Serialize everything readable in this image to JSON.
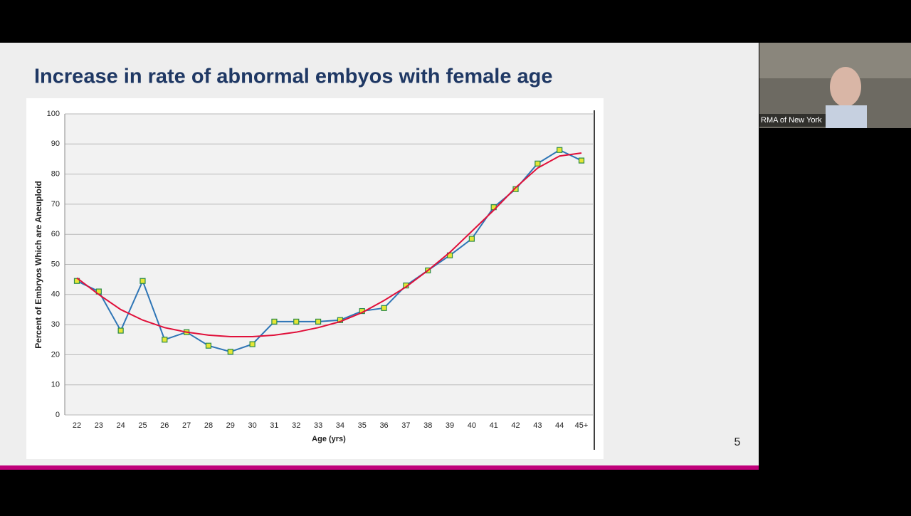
{
  "slide_title": "Increase in rate of abnormal embyos with female age",
  "page_number": 5,
  "participant_name": "RMA of New York",
  "chart_data": {
    "type": "line",
    "y_label": "Percent of Embryos Which are Aneuploid",
    "x_label": "Age (yrs)",
    "categories": [
      "22",
      "23",
      "24",
      "25",
      "26",
      "27",
      "28",
      "29",
      "30",
      "31",
      "32",
      "33",
      "34",
      "35",
      "36",
      "37",
      "38",
      "39",
      "40",
      "41",
      "42",
      "43",
      "44",
      "45+"
    ],
    "series": [
      {
        "color": "#2e75b6",
        "marker_color": "#e5e635",
        "values": [
          44.5,
          41,
          28,
          44.5,
          25,
          27.5,
          23,
          21,
          23.5,
          31,
          31,
          31,
          31.5,
          34.5,
          35.5,
          43,
          48,
          53,
          58.5,
          69,
          75,
          83.5,
          88,
          84.5
        ]
      },
      {
        "color": "#e0103a",
        "values": [
          45.5,
          40,
          35,
          31.5,
          29,
          27.5,
          26.5,
          26,
          26,
          26.5,
          27.5,
          29,
          31,
          34,
          38,
          42.5,
          48,
          54,
          61,
          68,
          75.5,
          82,
          86,
          87
        ]
      }
    ],
    "ylim": [
      0,
      100
    ],
    "yticks": [
      0,
      10,
      20,
      30,
      40,
      50,
      60,
      70,
      80,
      90,
      100
    ],
    "grid": true
  }
}
